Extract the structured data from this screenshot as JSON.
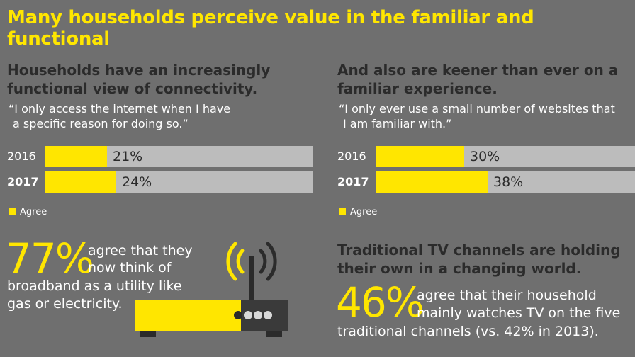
{
  "title": "Many households perceive value in the familiar and functional",
  "left": {
    "heading_line1": "Households have an increasingly",
    "heading_line2": "functional view of connectivity.",
    "quote_line1": "“I only access the internet when I have",
    "quote_line2": "a specific reason for doing so.”"
  },
  "right": {
    "heading_line1": "And also are keener than ever on a",
    "heading_line2": "familiar experience.",
    "quote_line1": "“I only ever use a small number of websites that",
    "quote_line2": "I am familiar with.”"
  },
  "legend_label": "Agree",
  "chart_data": [
    {
      "type": "bar",
      "orientation": "horizontal",
      "categories": [
        "2016",
        "2017"
      ],
      "series": [
        {
          "name": "Agree",
          "values": [
            21,
            24
          ]
        }
      ],
      "value_labels": [
        "21%",
        "24%"
      ],
      "xlim": [
        0,
        100
      ],
      "legend": "bottom-left",
      "grid": false,
      "colors": {
        "fill": "#ffe600",
        "track": "#bcbcbc"
      }
    },
    {
      "type": "bar",
      "orientation": "horizontal",
      "categories": [
        "2016",
        "2017"
      ],
      "series": [
        {
          "name": "Agree",
          "values": [
            30,
            38
          ]
        }
      ],
      "value_labels": [
        "30%",
        "38%"
      ],
      "xlim": [
        0,
        100
      ],
      "legend": "bottom-left",
      "grid": false,
      "colors": {
        "fill": "#ffe600",
        "track": "#bcbcbc"
      }
    }
  ],
  "stat_broadband": {
    "big": "77%",
    "line1": "agree that they",
    "line2": "now think of",
    "line3": "broadband as a utility like",
    "line4": "gas or electricity."
  },
  "tv": {
    "heading_line1": "Traditional TV channels are holding",
    "heading_line2": "their own in a changing world.",
    "big": "46%",
    "line1": "agree that their household",
    "line2": "mainly watches TV on the five",
    "line3": "traditional channels (vs. 42% in 2013)."
  },
  "icons": {
    "router": "wifi-router-icon"
  },
  "colors": {
    "accent": "#ffe600",
    "background": "#6f6f6f",
    "heading": "#2b2b2b",
    "router_dark": "#3a3a3a"
  }
}
